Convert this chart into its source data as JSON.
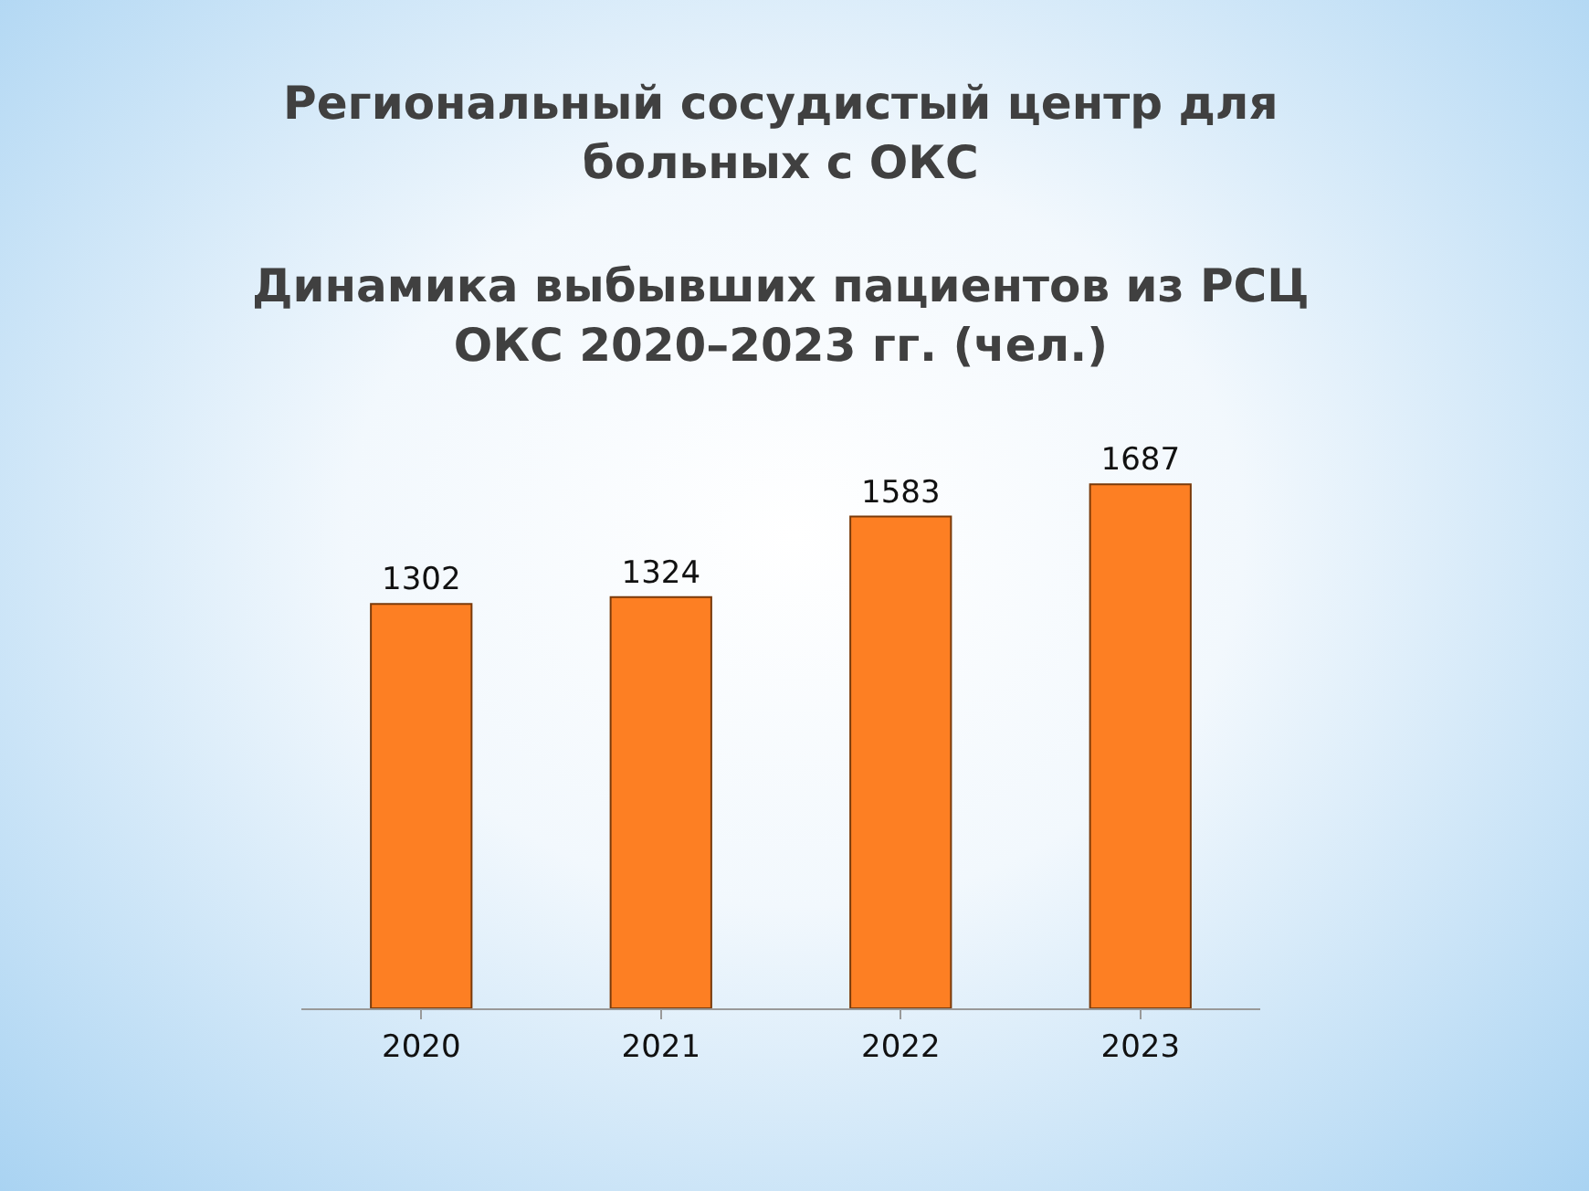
{
  "chart_data": {
    "type": "bar",
    "title": "Региональный сосудистый центр для больных с ОКС",
    "subtitle": "Динамика выбывших пациентов из РСЦ ОКС 2020–2023 гг. (чел.)",
    "categories": [
      "2020",
      "2021",
      "2022",
      "2023"
    ],
    "values": [
      1302,
      1324,
      1583,
      1687
    ],
    "color": "#fd7f23",
    "data_labels": true,
    "grid": false
  }
}
